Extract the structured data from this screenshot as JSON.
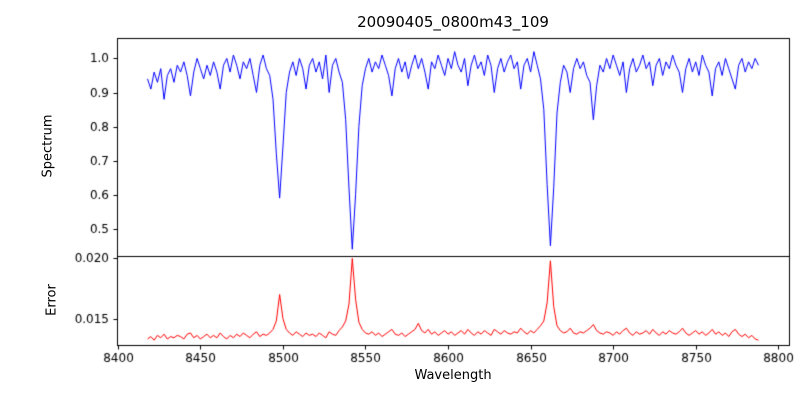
{
  "figure": {
    "background": "#ffffff",
    "axis_color": "#000000",
    "text_color": "#000000"
  },
  "chart_data": {
    "type": "line",
    "title": "20090405_0800m43_109",
    "xlabel": "Wavelength",
    "x_start": 8418,
    "x_step": 2,
    "xlim": [
      8399.5,
      8806.5
    ],
    "x_ticks": [
      8400,
      8450,
      8500,
      8550,
      8600,
      8650,
      8700,
      8750,
      8800
    ],
    "legend": "none",
    "grid": false,
    "panels": [
      {
        "ylabel": "Spectrum",
        "ylim": [
          0.42,
          1.06
        ],
        "y_ticks": [
          0.5,
          0.6,
          0.7,
          0.8,
          0.9,
          1.0
        ],
        "tick_decimals": 1,
        "series": {
          "name": "spectrum",
          "color": "#0000ff",
          "values": [
            0.94,
            0.91,
            0.96,
            0.93,
            0.97,
            0.88,
            0.95,
            0.97,
            0.93,
            0.98,
            0.96,
            0.99,
            0.95,
            0.89,
            0.96,
            1.0,
            0.97,
            0.94,
            0.98,
            0.95,
            0.99,
            0.96,
            0.91,
            0.98,
            1.0,
            0.96,
            1.01,
            0.98,
            0.94,
            0.99,
            0.97,
            1.0,
            0.95,
            0.9,
            0.98,
            1.01,
            0.97,
            0.95,
            0.88,
            0.72,
            0.59,
            0.74,
            0.9,
            0.96,
            0.99,
            0.95,
            1.0,
            0.97,
            0.91,
            0.98,
            1.0,
            0.96,
            0.99,
            0.94,
            1.01,
            0.9,
            0.98,
            1.0,
            0.96,
            0.93,
            0.82,
            0.62,
            0.44,
            0.6,
            0.8,
            0.92,
            0.97,
            1.0,
            0.96,
            0.99,
            0.97,
            1.01,
            0.98,
            0.95,
            0.89,
            0.97,
            1.0,
            0.96,
            0.99,
            0.94,
            0.98,
            1.01,
            0.97,
            1.0,
            0.96,
            0.91,
            0.99,
            0.97,
            1.01,
            0.98,
            0.95,
            1.0,
            0.97,
            1.02,
            0.98,
            0.96,
            1.0,
            0.92,
            0.98,
            1.01,
            0.97,
            0.99,
            0.95,
            1.01,
            0.98,
            0.9,
            0.97,
            1.0,
            0.96,
            0.99,
            1.01,
            0.97,
            0.99,
            0.91,
            0.98,
            1.0,
            0.96,
            1.02,
            0.98,
            0.94,
            0.85,
            0.63,
            0.45,
            0.62,
            0.84,
            0.93,
            0.98,
            0.96,
            0.9,
            0.97,
            1.0,
            0.97,
            0.99,
            0.95,
            0.93,
            0.82,
            0.92,
            0.98,
            0.96,
            1.0,
            0.97,
            1.01,
            0.98,
            0.95,
            0.99,
            0.9,
            0.97,
            1.0,
            0.96,
            0.98,
            1.01,
            0.97,
            0.99,
            0.92,
            0.98,
            1.0,
            0.95,
            0.99,
            0.97,
            1.01,
            0.98,
            0.96,
            0.9,
            0.97,
            1.0,
            0.96,
            0.99,
            0.95,
            1.01,
            0.98,
            0.96,
            0.89,
            0.97,
            0.99,
            0.95,
            1.0,
            0.97,
            0.94,
            0.91,
            0.98,
            1.0,
            0.96,
            0.99,
            0.97,
            1.0,
            0.98
          ]
        }
      },
      {
        "ylabel": "Error",
        "ylim": [
          0.0128,
          0.0202
        ],
        "y_ticks": [
          0.015,
          0.02
        ],
        "tick_decimals": 3,
        "series": {
          "name": "error",
          "color": "#ff0000",
          "values": [
            0.0133,
            0.0135,
            0.0132,
            0.0136,
            0.0134,
            0.0137,
            0.0133,
            0.0135,
            0.0134,
            0.0136,
            0.0135,
            0.0133,
            0.0137,
            0.0138,
            0.0134,
            0.0136,
            0.0133,
            0.0135,
            0.0137,
            0.0134,
            0.0136,
            0.0134,
            0.0138,
            0.0135,
            0.0133,
            0.0136,
            0.0134,
            0.0137,
            0.0135,
            0.0138,
            0.0136,
            0.0134,
            0.0137,
            0.0139,
            0.0135,
            0.0137,
            0.0136,
            0.0138,
            0.0141,
            0.0148,
            0.017,
            0.015,
            0.0141,
            0.0138,
            0.0136,
            0.0139,
            0.0137,
            0.0135,
            0.0138,
            0.0136,
            0.0137,
            0.0135,
            0.0138,
            0.0136,
            0.0134,
            0.0139,
            0.0137,
            0.0136,
            0.014,
            0.0143,
            0.0148,
            0.0162,
            0.02,
            0.0166,
            0.0147,
            0.0141,
            0.0138,
            0.0137,
            0.0139,
            0.0136,
            0.0138,
            0.0135,
            0.0137,
            0.0139,
            0.0141,
            0.0137,
            0.0136,
            0.0138,
            0.0135,
            0.0137,
            0.0139,
            0.0141,
            0.0146,
            0.014,
            0.0138,
            0.0141,
            0.0137,
            0.0139,
            0.0136,
            0.0138,
            0.014,
            0.0137,
            0.0139,
            0.0136,
            0.0138,
            0.014,
            0.0137,
            0.0141,
            0.0138,
            0.0136,
            0.0139,
            0.0137,
            0.014,
            0.0138,
            0.0136,
            0.0141,
            0.0139,
            0.0137,
            0.014,
            0.0138,
            0.0137,
            0.0139,
            0.0138,
            0.0142,
            0.0139,
            0.0137,
            0.014,
            0.0138,
            0.0141,
            0.0144,
            0.0148,
            0.0163,
            0.0198,
            0.016,
            0.0144,
            0.014,
            0.0138,
            0.0139,
            0.0142,
            0.0138,
            0.0137,
            0.0139,
            0.0138,
            0.014,
            0.0142,
            0.0145,
            0.014,
            0.0138,
            0.0137,
            0.0139,
            0.0138,
            0.0136,
            0.0139,
            0.0137,
            0.014,
            0.0142,
            0.0138,
            0.0136,
            0.0139,
            0.0137,
            0.0138,
            0.014,
            0.0137,
            0.0141,
            0.0138,
            0.0136,
            0.0139,
            0.0137,
            0.014,
            0.0138,
            0.0137,
            0.0139,
            0.0142,
            0.0138,
            0.0136,
            0.0138,
            0.014,
            0.0137,
            0.0139,
            0.0136,
            0.0138,
            0.0141,
            0.0137,
            0.0139,
            0.0136,
            0.0138,
            0.0135,
            0.0139,
            0.0141,
            0.0137,
            0.0135,
            0.0137,
            0.0134,
            0.0136,
            0.0133,
            0.0132
          ]
        }
      }
    ]
  }
}
